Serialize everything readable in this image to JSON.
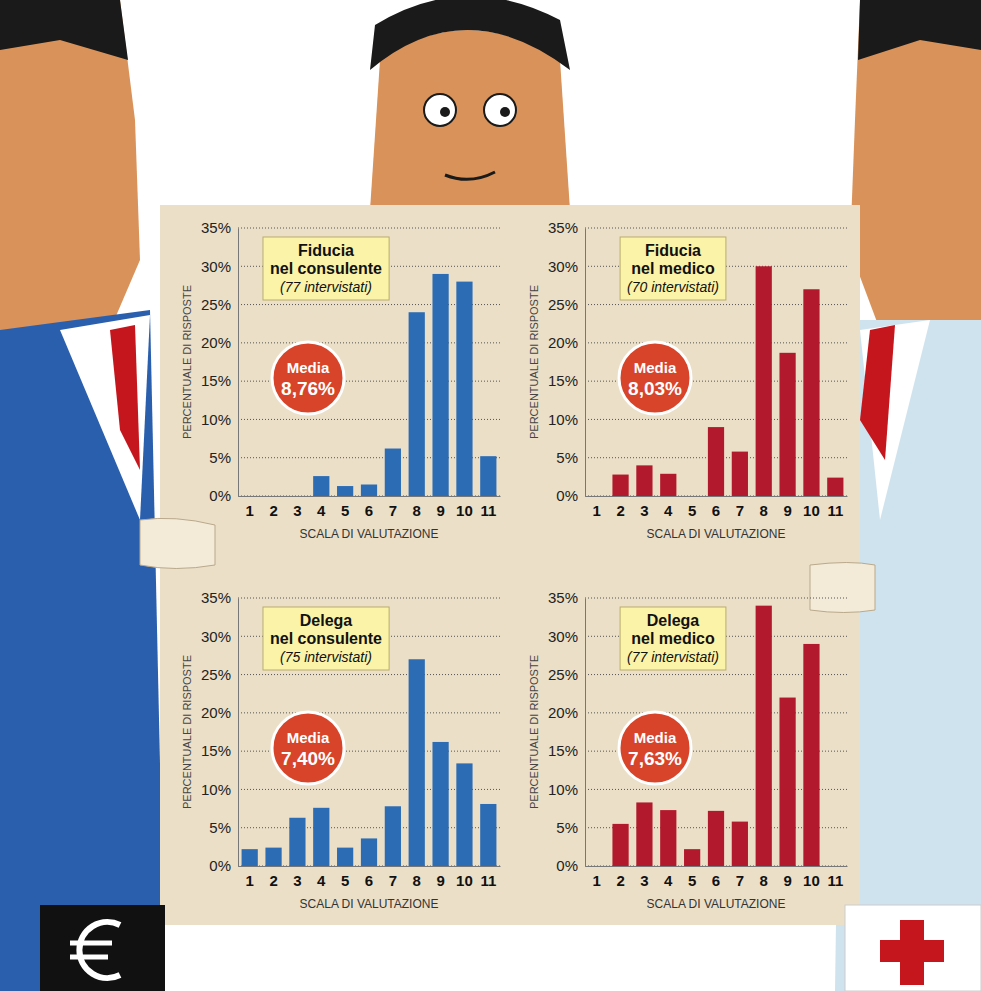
{
  "chart_data": [
    {
      "type": "bar",
      "title": "Fiducia nel consulente",
      "subtitle": "(77 intervistati)",
      "annotations": [
        "Media",
        "8,76%"
      ],
      "x_label": "SCALA DI VALUTAZIONE",
      "y_label": "PERCENTUALE DI RISPOSTE",
      "categories": [
        "1",
        "2",
        "3",
        "4",
        "5",
        "6",
        "7",
        "8",
        "9",
        "10",
        "11"
      ],
      "values": [
        0,
        0,
        0,
        2.6,
        1.3,
        1.5,
        6.2,
        24,
        29,
        28,
        5.2
      ],
      "color": "#2b6cb5",
      "ylim": [
        0,
        35
      ],
      "yticks": [
        {
          "value": 0,
          "label": "0%"
        },
        {
          "value": 5,
          "label": "5%"
        },
        {
          "value": 10,
          "label": "10%"
        },
        {
          "value": 15,
          "label": "15%"
        },
        {
          "value": 20,
          "label": "20%"
        },
        {
          "value": 25,
          "label": "25%"
        },
        {
          "value": 30,
          "label": "30%"
        },
        {
          "value": 35,
          "label": "35%"
        }
      ],
      "grid": true
    },
    {
      "type": "bar",
      "title": "Fiducia nel medico",
      "subtitle": "(70 intervistati)",
      "annotations": [
        "Media",
        "8,03%"
      ],
      "x_label": "SCALA DI VALUTAZIONE",
      "y_label": "PERCENTUALE DI RISPOSTE",
      "categories": [
        "1",
        "2",
        "3",
        "4",
        "5",
        "6",
        "7",
        "8",
        "9",
        "10",
        "11"
      ],
      "values": [
        0,
        2.8,
        4,
        2.9,
        0,
        9,
        5.8,
        30,
        18.7,
        27,
        2.4
      ],
      "color": "#b3192d",
      "ylim": [
        0,
        35
      ],
      "yticks": [
        {
          "value": 0,
          "label": "0%"
        },
        {
          "value": 5,
          "label": "5%"
        },
        {
          "value": 10,
          "label": "10%"
        },
        {
          "value": 15,
          "label": "15%"
        },
        {
          "value": 20,
          "label": "20%"
        },
        {
          "value": 25,
          "label": "25%"
        },
        {
          "value": 30,
          "label": "30%"
        },
        {
          "value": 35,
          "label": "35%"
        }
      ],
      "grid": true
    },
    {
      "type": "bar",
      "title": "Delega nel consulente",
      "subtitle": "(75 intervistati)",
      "annotations": [
        "Media",
        "7,40%"
      ],
      "x_label": "SCALA DI VALUTAZIONE",
      "y_label": "PERCENTUALE DI RISPOSTE",
      "categories": [
        "1",
        "2",
        "3",
        "4",
        "5",
        "6",
        "7",
        "8",
        "9",
        "10",
        "11"
      ],
      "values": [
        2.2,
        2.4,
        6.3,
        7.6,
        2.4,
        3.6,
        7.8,
        27,
        16.2,
        13.4,
        8.1
      ],
      "color": "#2b6cb5",
      "ylim": [
        0,
        35
      ],
      "yticks": [
        {
          "value": 0,
          "label": "0%"
        },
        {
          "value": 5,
          "label": "5%"
        },
        {
          "value": 10,
          "label": "10%"
        },
        {
          "value": 15,
          "label": "15%"
        },
        {
          "value": 20,
          "label": "20%"
        },
        {
          "value": 25,
          "label": "25%"
        },
        {
          "value": 30,
          "label": "30%"
        },
        {
          "value": 35,
          "label": "35%"
        }
      ],
      "grid": true
    },
    {
      "type": "bar",
      "title": "Delega nel medico",
      "subtitle": "(77 intervistati)",
      "annotations": [
        "Media",
        "7,63%"
      ],
      "x_label": "SCALA DI VALUTAZIONE",
      "y_label": "PERCENTUALE DI RISPOSTE",
      "categories": [
        "1",
        "2",
        "3",
        "4",
        "5",
        "6",
        "7",
        "8",
        "9",
        "10",
        "11"
      ],
      "values": [
        0,
        5.5,
        8.3,
        7.3,
        2.2,
        7.2,
        5.8,
        34,
        22,
        29,
        0
      ],
      "color": "#b3192d",
      "ylim": [
        0,
        35
      ],
      "yticks": [
        {
          "value": 0,
          "label": "0%"
        },
        {
          "value": 5,
          "label": "5%"
        },
        {
          "value": 10,
          "label": "10%"
        },
        {
          "value": 15,
          "label": "15%"
        },
        {
          "value": 20,
          "label": "20%"
        },
        {
          "value": 25,
          "label": "25%"
        },
        {
          "value": 30,
          "label": "30%"
        },
        {
          "value": 35,
          "label": "35%"
        }
      ],
      "grid": true
    }
  ]
}
